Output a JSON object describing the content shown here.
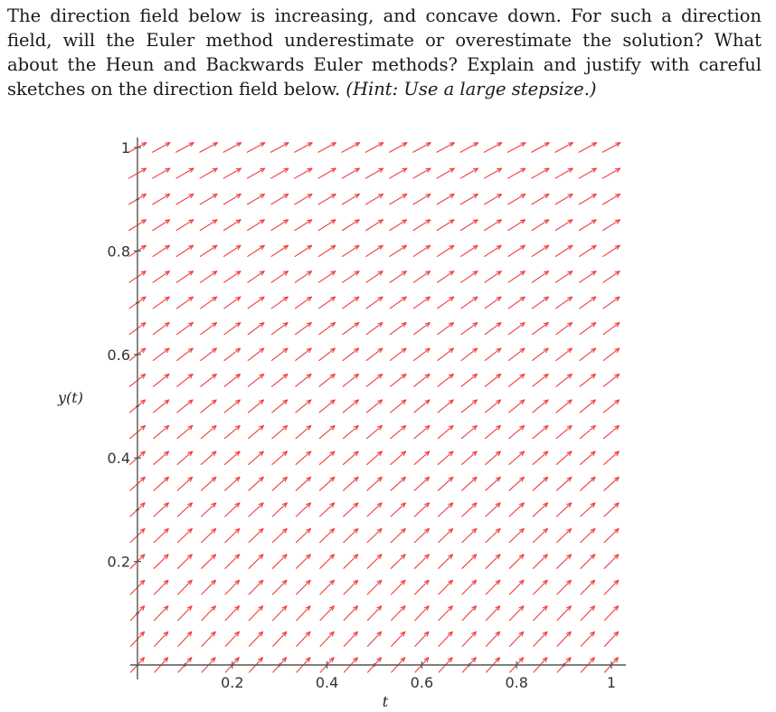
{
  "question": {
    "part1": "The direction field below is increasing, and concave down. For such a direction field, will the Euler method underestimate or overestimate the solution? What about the Heun and Backwards Euler methods? Explain and justify with careful sketches on the direction field below.",
    "hint_open": "(",
    "hint": "Hint: Use a large stepsize.",
    "hint_close": ")"
  },
  "chart_data": {
    "type": "direction-field",
    "xlabel": "t",
    "ylabel": "y(t)",
    "xlim": [
      0,
      1
    ],
    "ylim": [
      0,
      1
    ],
    "xticks": [
      {
        "value": 0.2,
        "label": "0.2"
      },
      {
        "value": 0.4,
        "label": "0.4"
      },
      {
        "value": 0.6,
        "label": "0.6"
      },
      {
        "value": 0.8,
        "label": "0.8"
      },
      {
        "value": 1.0,
        "label": "1"
      }
    ],
    "yticks": [
      {
        "value": 0.2,
        "label": "0.2"
      },
      {
        "value": 0.4,
        "label": "0.4"
      },
      {
        "value": 0.6,
        "label": "0.6"
      },
      {
        "value": 0.8,
        "label": "0.8"
      },
      {
        "value": 1.0,
        "label": "1"
      }
    ],
    "grid_count": 20,
    "slope_function": "1 - y/2",
    "arrow_color": "#f03c3c",
    "axis_color": "#555555"
  }
}
